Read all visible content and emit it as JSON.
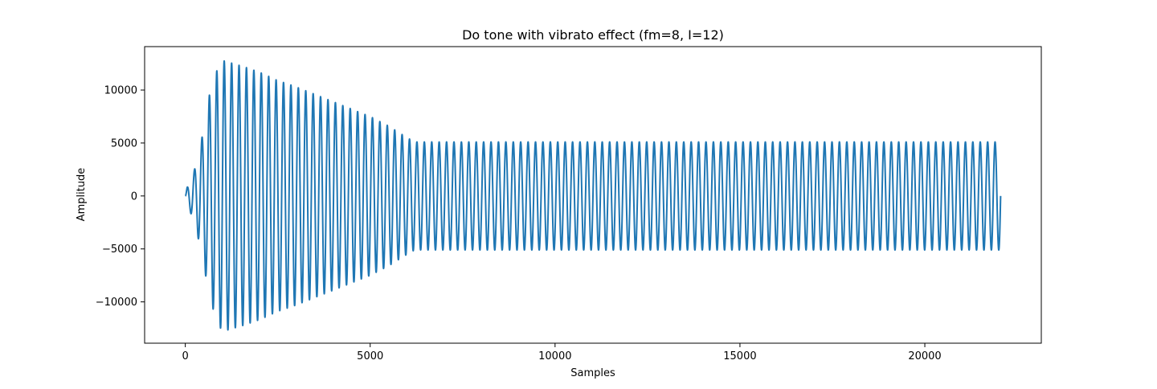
{
  "chart_data": {
    "type": "line",
    "title": "Do tone with vibrato effect (fm=8, I=12)",
    "xlabel": "Samples",
    "ylabel": "Amplitude",
    "xlim": [
      -1100,
      23150
    ],
    "ylim": [
      -13900,
      14100
    ],
    "xticks": [
      0,
      5000,
      10000,
      15000,
      20000
    ],
    "xtick_labels": [
      "0",
      "5000",
      "10000",
      "15000",
      "20000"
    ],
    "yticks": [
      -10000,
      -5000,
      0,
      5000,
      10000
    ],
    "ytick_labels": [
      "−10000",
      "−5000",
      "0",
      "5000",
      "10000"
    ],
    "grid": false,
    "legend": "none",
    "series": [
      {
        "color": "#1f77b4",
        "n_samples": 22050,
        "cycles": 110,
        "envelope": {
          "x": [
            0,
            50,
            250,
            450,
            650,
            850,
            1000,
            1500,
            2000,
            2500,
            3000,
            3500,
            4000,
            4500,
            5000,
            5500,
            6000,
            6200,
            22050
          ],
          "amplitude": [
            0,
            800,
            2500,
            5500,
            9500,
            11800,
            12800,
            12300,
            11700,
            10900,
            10300,
            9600,
            8900,
            8200,
            7500,
            6600,
            5500,
            5100,
            5100
          ]
        }
      }
    ]
  }
}
